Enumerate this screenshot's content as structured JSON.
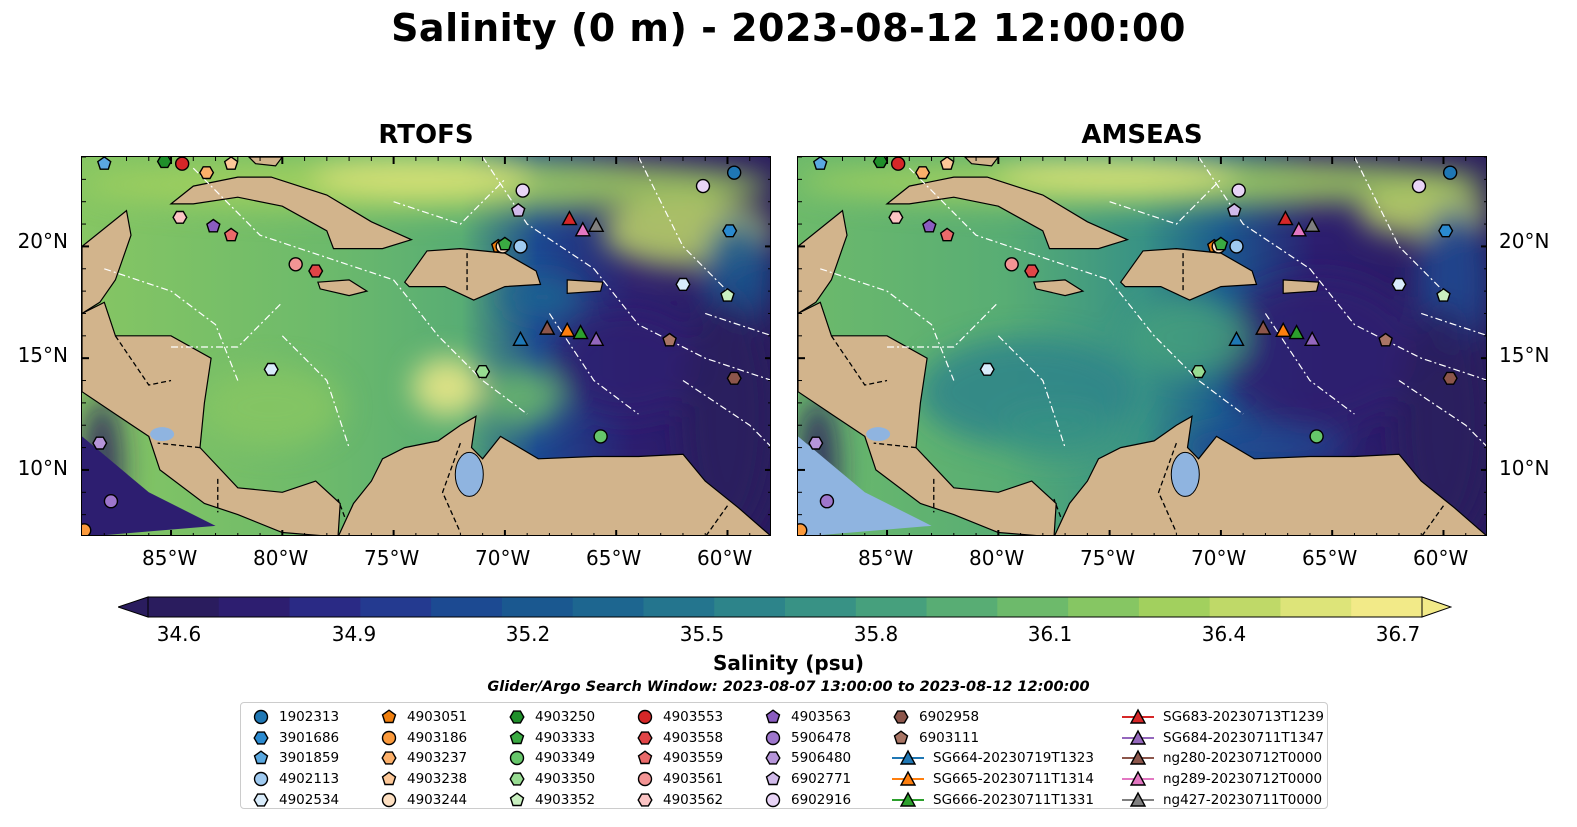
{
  "figure": {
    "title": "Salinity (0 m) - 2023-08-12 12:00:00",
    "search_window": "Glider/Argo Search Window: 2023-08-07 13:00:00 to 2023-08-12 12:00:00"
  },
  "panels": [
    {
      "title": "RTOFS"
    },
    {
      "title": "AMSEAS"
    }
  ],
  "axes": {
    "lon_ticks": [
      "85°W",
      "80°W",
      "75°W",
      "70°W",
      "65°W",
      "60°W"
    ],
    "lat_ticks": [
      "20°N",
      "15°N",
      "10°N"
    ],
    "lon_range": [
      -89,
      -58
    ],
    "lat_range": [
      7,
      24
    ]
  },
  "map_style": {
    "land_color": "#d2b48c",
    "lake_color": "#8fb4e0",
    "eez_line_color": "#ffffff",
    "border_line_color": "#000000"
  },
  "colorbar": {
    "label": "Salinity (psu)",
    "ticks": [
      "34.6",
      "34.9",
      "35.2",
      "35.5",
      "35.8",
      "36.1",
      "36.4",
      "36.7"
    ],
    "vmin": 34.6,
    "vmax": 36.7,
    "colors": [
      "#2a1c5e",
      "#2d1e70",
      "#2a2a85",
      "#243a90",
      "#1c4a92",
      "#1a5890",
      "#1d6690",
      "#24758e",
      "#2d848a",
      "#389285",
      "#46a07d",
      "#58ad74",
      "#6dba6b",
      "#86c663",
      "#a2d05e",
      "#bfd968",
      "#dde479",
      "#f2ea88"
    ]
  },
  "legend": {
    "items": [
      {
        "label": "1902313",
        "marker": "circle",
        "color": "#1f77b4"
      },
      {
        "label": "3901686",
        "marker": "hexagon",
        "color": "#2a8ad0"
      },
      {
        "label": "3901859",
        "marker": "pentagon",
        "color": "#5aa8e0"
      },
      {
        "label": "4902113",
        "marker": "circle",
        "color": "#9fcaf0"
      },
      {
        "label": "4902534",
        "marker": "hexagon",
        "color": "#d9ecfb"
      },
      {
        "label": "4903051",
        "marker": "pentagon",
        "color": "#f07f0e"
      },
      {
        "label": "4903186",
        "marker": "circle",
        "color": "#fb9a3c"
      },
      {
        "label": "4903237",
        "marker": "hexagon",
        "color": "#fcb06a"
      },
      {
        "label": "4903238",
        "marker": "pentagon",
        "color": "#fdc898"
      },
      {
        "label": "4903244",
        "marker": "circle",
        "color": "#fee0c2"
      },
      {
        "label": "4903250",
        "marker": "hexagon",
        "color": "#1f8f2a"
      },
      {
        "label": "4903333",
        "marker": "pentagon",
        "color": "#3aaa42"
      },
      {
        "label": "4903349",
        "marker": "circle",
        "color": "#66c66a"
      },
      {
        "label": "4903350",
        "marker": "hexagon",
        "color": "#98dc92"
      },
      {
        "label": "4903352",
        "marker": "pentagon",
        "color": "#c9f0c0"
      },
      {
        "label": "4903553",
        "marker": "circle",
        "color": "#d62728"
      },
      {
        "label": "4903558",
        "marker": "hexagon",
        "color": "#e14547"
      },
      {
        "label": "4903559",
        "marker": "pentagon",
        "color": "#ea6a6a"
      },
      {
        "label": "4903561",
        "marker": "circle",
        "color": "#f39494"
      },
      {
        "label": "4903562",
        "marker": "hexagon",
        "color": "#fbc4c4"
      },
      {
        "label": "4903563",
        "marker": "pentagon",
        "color": "#8a5cc0"
      },
      {
        "label": "5906478",
        "marker": "circle",
        "color": "#9e76cc"
      },
      {
        "label": "5906480",
        "marker": "hexagon",
        "color": "#b695d9"
      },
      {
        "label": "6902771",
        "marker": "pentagon",
        "color": "#d1baea"
      },
      {
        "label": "6902916",
        "marker": "circle",
        "color": "#e8d4f6"
      },
      {
        "label": "6902958",
        "marker": "hexagon",
        "color": "#8c564b"
      },
      {
        "label": "6903111",
        "marker": "pentagon",
        "color": "#a87565"
      },
      {
        "label": "SG664-20230719T1323",
        "marker": "triangle-line",
        "color": "#1f77b4"
      },
      {
        "label": "SG665-20230711T1314",
        "marker": "triangle-line",
        "color": "#ff7f0e"
      },
      {
        "label": "SG666-20230711T1331",
        "marker": "triangle-line",
        "color": "#2ca02c"
      },
      {
        "label": "SG683-20230713T1239",
        "marker": "triangle-line",
        "color": "#d62728"
      },
      {
        "label": "SG684-20230711T1347",
        "marker": "triangle-line",
        "color": "#9467bd"
      },
      {
        "label": "ng280-20230712T0000",
        "marker": "triangle-line",
        "color": "#8c564b"
      },
      {
        "label": "ng289-20230712T0000",
        "marker": "triangle-line",
        "color": "#e377c2"
      },
      {
        "label": "ng427-20230711T0000",
        "marker": "triangle-line",
        "color": "#7f7f7f"
      }
    ]
  }
}
